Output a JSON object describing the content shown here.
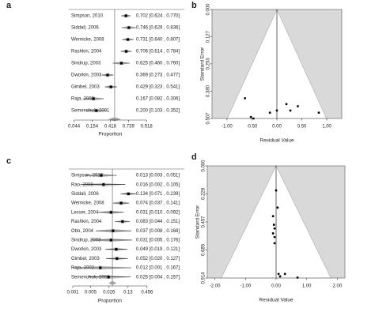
{
  "chart_data": [
    {
      "type": "forest",
      "panel_label": "a",
      "categories": [
        "Simpson, 2010",
        "Siddall, 2006",
        "Wernicke, 2008",
        "Rashkin, 2004",
        "Sindrup, 2003",
        "Dworkin, 2003",
        "Gimbel, 2003",
        "Raja, 2002",
        "Semenchuk, 2001"
      ],
      "values": [
        0.702,
        0.746,
        0.731,
        0.706,
        0.625,
        0.369,
        0.429,
        0.167,
        0.2
      ],
      "lower": [
        0.624,
        0.629,
        0.64,
        0.614,
        0.46,
        0.273,
        0.323,
        0.082,
        0.103
      ],
      "upper": [
        0.77,
        0.836,
        0.807,
        0.784,
        0.76,
        0.477,
        0.541,
        0.306,
        0.352
      ],
      "value_labels": [
        "0.702 [0.624 , 0.770]",
        "0.746 [0.629 , 0.836]",
        "0.731 [0.640 , 0.807]",
        "0.706 [0.614 , 0.784]",
        "0.625 [0.460 , 0.760]",
        "0.369 [0.273 , 0.477]",
        "0.429 [0.323 , 0.541]",
        "0.167 [0.082 , 0.306]",
        "0.200 [0.103 , 0.352]"
      ],
      "summary": {
        "value": 0.5,
        "lower": 0.38,
        "upper": 0.62
      },
      "xlabel": "Proportion",
      "xscale": "logit",
      "xlim": [
        0.03,
        0.95
      ],
      "xticks": [
        0.044,
        0.154,
        0.418,
        0.739,
        0.918
      ],
      "color": "#000000",
      "ci_color": "#9e9e9e"
    },
    {
      "type": "funnel",
      "panel_label": "b",
      "x": [
        -0.64,
        -0.52,
        -0.47,
        -0.14,
        0.0,
        0.19,
        0.27,
        0.42,
        0.84
      ],
      "values": [
        0.413,
        0.5,
        0.507,
        0.48,
        0.47,
        0.44,
        0.47,
        0.45,
        0.48
      ],
      "xlabel": "Residual Value",
      "ylabel": "Standard Error",
      "xlim": [
        -1.3,
        1.3
      ],
      "ylim": [
        0,
        0.507
      ],
      "yreverse": true,
      "xticks": [
        {
          "value": -1,
          "label": "-1.00"
        },
        {
          "value": -0.5,
          "label": "-0.50"
        },
        {
          "value": 0,
          "label": "0.00"
        },
        {
          "value": 0.5,
          "label": "0.50"
        },
        {
          "value": 1,
          "label": "1.00"
        }
      ],
      "yticks": [
        {
          "value": 0,
          "label": "0.000"
        },
        {
          "value": 0.127,
          "label": "0.127"
        },
        {
          "value": 0.253,
          "label": "0.253"
        },
        {
          "value": 0.38,
          "label": "0.380"
        },
        {
          "value": 0.507,
          "label": "0.507"
        }
      ],
      "color": "#000000",
      "background": "#d9d9d9"
    },
    {
      "type": "forest",
      "panel_label": "c",
      "categories": [
        "Simpson, 2010",
        "Rao, 2008",
        "Siddall, 2006",
        "Wernicke, 2008",
        "Lesser, 2004",
        "Rashkin, 2004",
        "Otto, 2004",
        "Sindrup, 2003",
        "Dworkin, 2003",
        "Gimbel, 2003",
        "Raja, 2002",
        "Semenchuk, 2001"
      ],
      "values": [
        0.013,
        0.016,
        0.134,
        0.074,
        0.031,
        0.083,
        0.037,
        0.031,
        0.049,
        0.052,
        0.012,
        0.025
      ],
      "lower": [
        0.003,
        0.002,
        0.071,
        0.037,
        0.01,
        0.044,
        0.008,
        0.005,
        0.019,
        0.02,
        0.001,
        0.004
      ],
      "upper": [
        0.051,
        0.105,
        0.239,
        0.141,
        0.092,
        0.151,
        0.168,
        0.176,
        0.121,
        0.127,
        0.167,
        0.157
      ],
      "value_labels": [
        "0.013 [0.003 , 0.051]",
        "0.016 [0.002 , 0.105]",
        "0.134 [0.071 , 0.239]",
        "0.074 [0.037 , 0.141]",
        "0.031 [0.010 , 0.092]",
        "0.083 [0.044 , 0.151]",
        "0.037 [0.008 , 0.168]",
        "0.031 [0.005 , 0.176]",
        "0.049 [0.019 , 0.121]",
        "0.052 [0.020 , 0.127]",
        "0.012 [0.001 , 0.167]",
        "0.025 [0.004 , 0.157]"
      ],
      "summary": {
        "value": 0.035,
        "lower": 0.025,
        "upper": 0.05
      },
      "xlabel": "Proportion",
      "xscale": "logit",
      "xlim": [
        0.0007,
        0.6
      ],
      "xticks": [
        0.001,
        0.005,
        0.026,
        0.13,
        0.456
      ],
      "color": "#000000",
      "ci_color": "#9e9e9e"
    },
    {
      "type": "funnel",
      "panel_label": "d",
      "x": [
        0.0,
        0.05,
        -0.1,
        -0.07,
        -0.05,
        -0.1,
        -0.05,
        -0.05,
        0.08,
        0.13,
        0.29,
        0.7
      ],
      "values": [
        0.2,
        0.34,
        0.41,
        0.48,
        0.51,
        0.55,
        0.58,
        0.63,
        0.88,
        0.9,
        0.88,
        0.91
      ],
      "xlabel": "Residual Value",
      "ylabel": "Standard Error",
      "xlim": [
        -2.25,
        2.25
      ],
      "ylim": [
        0,
        0.914
      ],
      "yreverse": true,
      "xticks": [
        {
          "value": -2,
          "label": "-2.00"
        },
        {
          "value": -1,
          "label": "-1.00"
        },
        {
          "value": 0,
          "label": "0.00"
        },
        {
          "value": 1,
          "label": "1.00"
        },
        {
          "value": 2,
          "label": "2.00"
        }
      ],
      "yticks": [
        {
          "value": 0,
          "label": "0.000"
        },
        {
          "value": 0.228,
          "label": "0.228"
        },
        {
          "value": 0.457,
          "label": "0.457"
        },
        {
          "value": 0.685,
          "label": "0.685"
        },
        {
          "value": 0.914,
          "label": "0.914"
        }
      ],
      "color": "#000000",
      "background": "#d9d9d9"
    }
  ]
}
